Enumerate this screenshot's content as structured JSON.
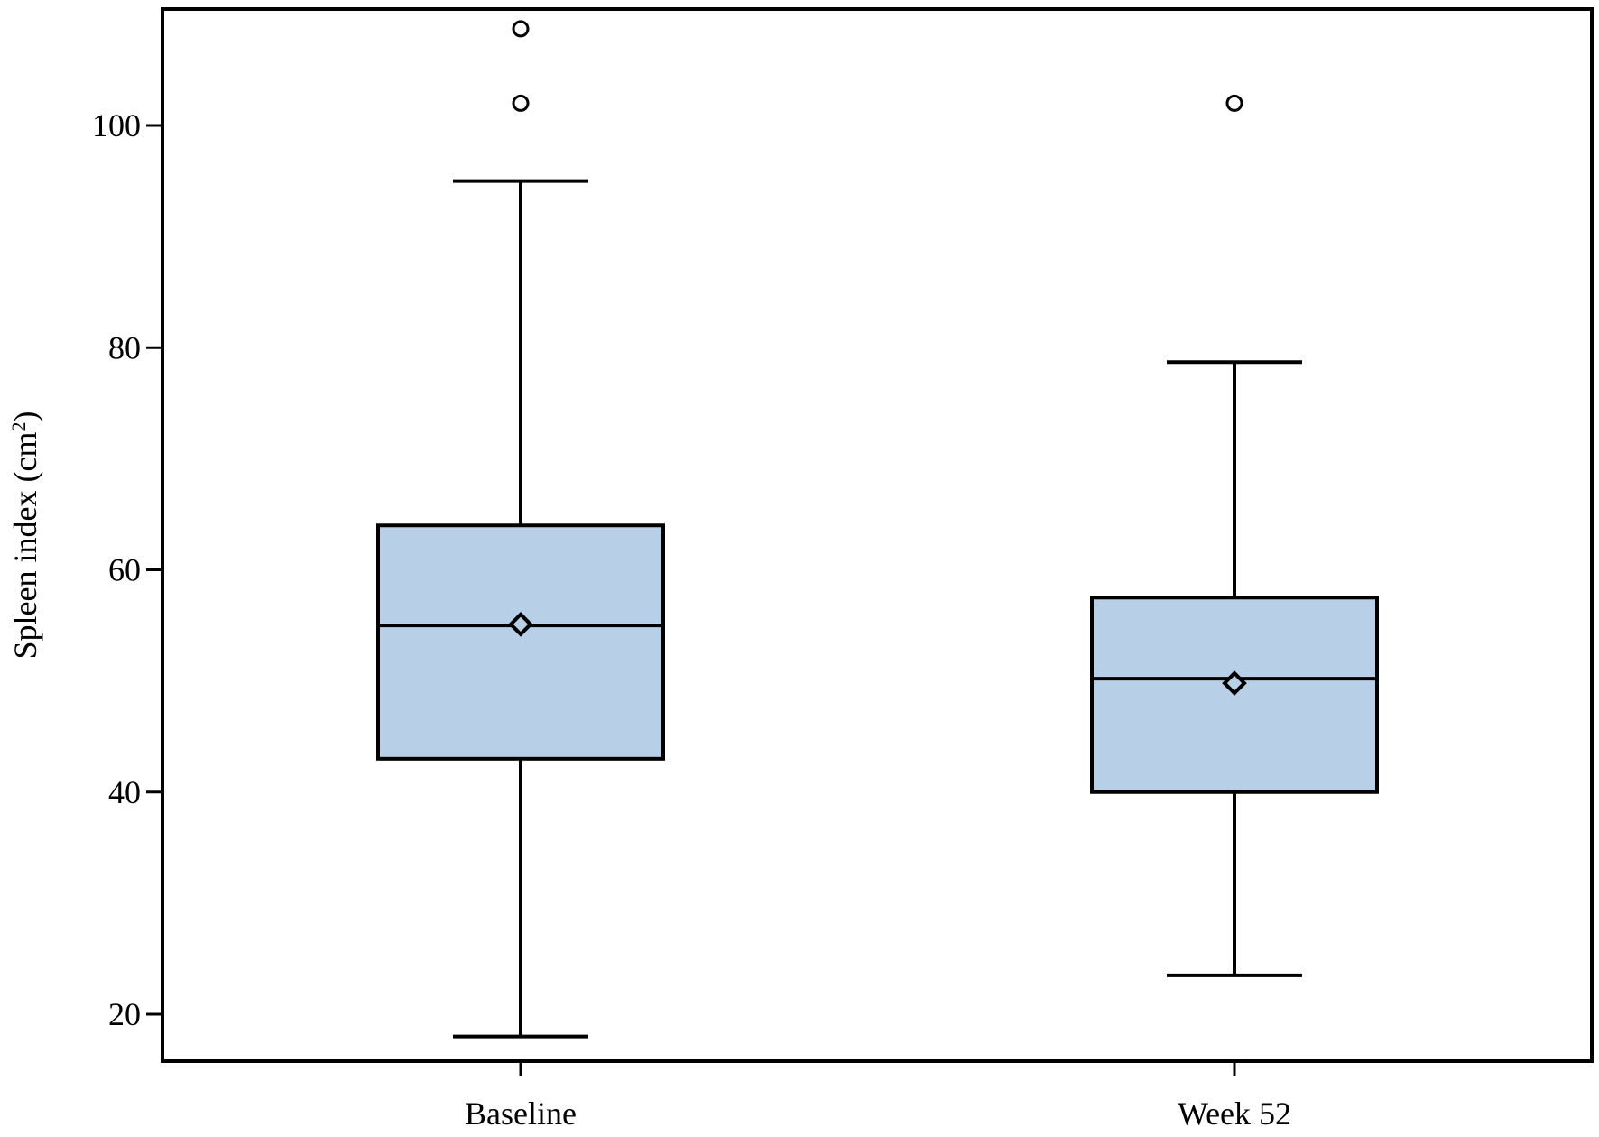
{
  "chart_data": {
    "type": "boxplot",
    "ylabel": "Spleen index (cm",
    "ylabel_sup": "2",
    "ylabel_close": ")",
    "xlabel": "",
    "ylim": [
      16,
      110
    ],
    "yticks": [
      20,
      40,
      60,
      80,
      100
    ],
    "grid": false,
    "categories": [
      "Baseline",
      "Week 52"
    ],
    "boxes": [
      {
        "category": "Baseline",
        "whisker_low": 18,
        "q1": 43,
        "median": 55,
        "mean": 55.1,
        "q3": 64,
        "whisker_high": 95,
        "outliers": [
          102,
          108.7
        ]
      },
      {
        "category": "Week 52",
        "whisker_low": 23.5,
        "q1": 40,
        "median": 50.2,
        "mean": 49.8,
        "q3": 57.5,
        "whisker_high": 78.7,
        "outliers": [
          102
        ]
      }
    ],
    "colors": {
      "box_fill": "#b8cfe8",
      "stroke": "#000000"
    }
  }
}
